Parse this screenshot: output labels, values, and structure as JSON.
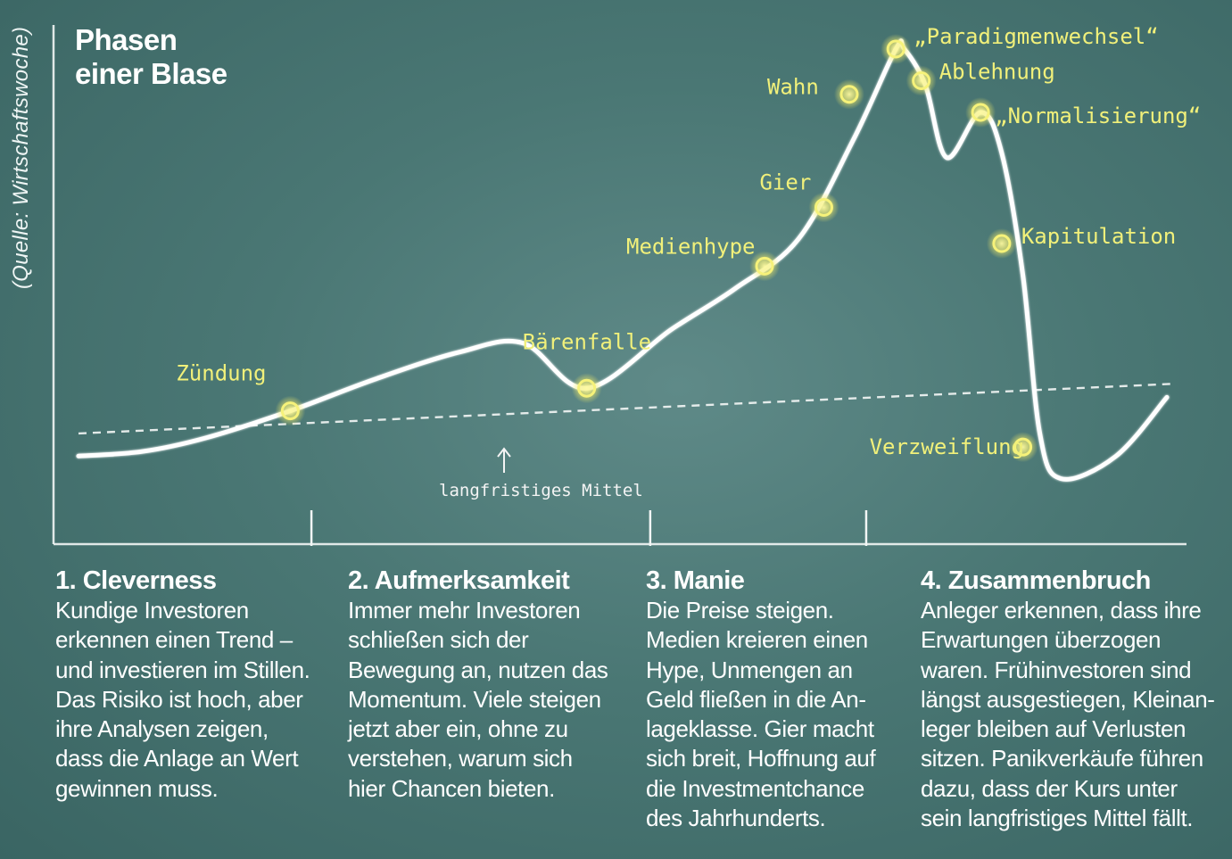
{
  "source": "(Quelle: Wirtschaftswoche)",
  "title": [
    "Phasen",
    "einer Blase"
  ],
  "chart_data": {
    "type": "line",
    "title": "Phasen einer Blase",
    "xlabel": "",
    "ylabel": "",
    "grid": false,
    "legend": "none",
    "curve": [
      [
        0.0,
        0.1
      ],
      [
        1.5,
        0.11
      ],
      [
        3.0,
        0.14
      ],
      [
        5.0,
        0.2
      ],
      [
        7.0,
        0.27
      ],
      [
        9.0,
        0.33
      ],
      [
        10.5,
        0.35
      ],
      [
        12.0,
        0.25
      ],
      [
        14.0,
        0.38
      ],
      [
        15.5,
        0.47
      ],
      [
        17.0,
        0.58
      ],
      [
        18.3,
        0.8
      ],
      [
        19.3,
        1.0
      ],
      [
        19.5,
        1.0
      ],
      [
        20.0,
        0.92
      ],
      [
        20.5,
        0.76
      ],
      [
        21.3,
        0.86
      ],
      [
        21.8,
        0.77
      ],
      [
        22.3,
        0.5
      ],
      [
        22.7,
        0.15
      ],
      [
        23.2,
        0.05
      ],
      [
        24.5,
        0.1
      ],
      [
        25.7,
        0.23
      ]
    ],
    "trend_line": {
      "name": "langfristiges Mittel",
      "x": [
        0.0,
        25.9
      ],
      "y": [
        0.15,
        0.26
      ]
    },
    "phase_boundaries_x": [
      5.5,
      13.5,
      18.6
    ],
    "events": [
      {
        "label": "Zündung",
        "x": 5.0,
        "y": 0.2
      },
      {
        "label": "Bärenfalle",
        "x": 12.0,
        "y": 0.25
      },
      {
        "label": "Medienhype",
        "x": 16.2,
        "y": 0.52
      },
      {
        "label": "Gier",
        "x": 17.6,
        "y": 0.65
      },
      {
        "label": "Wahn",
        "x": 18.2,
        "y": 0.9
      },
      {
        "label": "„Paradigmenwechsel“",
        "x": 19.3,
        "y": 1.0
      },
      {
        "label": "Ablehnung",
        "x": 19.9,
        "y": 0.93
      },
      {
        "label": "„Normalisierung“",
        "x": 21.3,
        "y": 0.86
      },
      {
        "label": "Kapitulation",
        "x": 21.8,
        "y": 0.57
      },
      {
        "label": "Verzweiflung",
        "x": 22.3,
        "y": 0.12
      }
    ],
    "annotation": "langfristiges Mittel"
  },
  "phases": [
    {
      "title": "1. Cleverness",
      "lines": [
        "Kundige Investoren",
        "erkennen einen Trend –",
        "und investieren im Stillen.",
        "Das Risiko ist hoch, aber",
        "ihre Analysen zeigen,",
        "dass die Anlage an Wert",
        "gewinnen muss."
      ]
    },
    {
      "title": "2. Aufmerksamkeit",
      "lines": [
        "Immer mehr Investoren",
        "schließen sich der",
        "Bewegung an, nutzen das",
        "Momentum. Viele steigen",
        "jetzt aber ein, ohne zu",
        "verstehen, warum sich",
        "hier Chancen bieten."
      ]
    },
    {
      "title": "3. Manie",
      "lines": [
        "Die Preise steigen.",
        "Medien kreieren einen",
        "Hype, Unmengen an",
        "Geld fließen in die An-",
        "lageklasse. Gier macht",
        "sich breit, Hoffnung auf",
        "die Investmentchance",
        "des Jahrhunderts."
      ]
    },
    {
      "title": "4. Zusammenbruch",
      "lines": [
        "Anleger erkennen, dass ihre",
        "Erwartungen überzogen",
        "waren. Frühinvestoren sind",
        "längst ausgestiegen, Kleinan-",
        "leger bleiben auf Verlusten",
        "sitzen. Panikverkäufe führen",
        "dazu, dass der Kurs unter",
        "sein langfristiges Mittel fällt."
      ]
    }
  ],
  "colors": {
    "background": "#4a7774",
    "curve": "#ffffff",
    "labels": "#f1f07a",
    "markers": "#f6f27a"
  }
}
